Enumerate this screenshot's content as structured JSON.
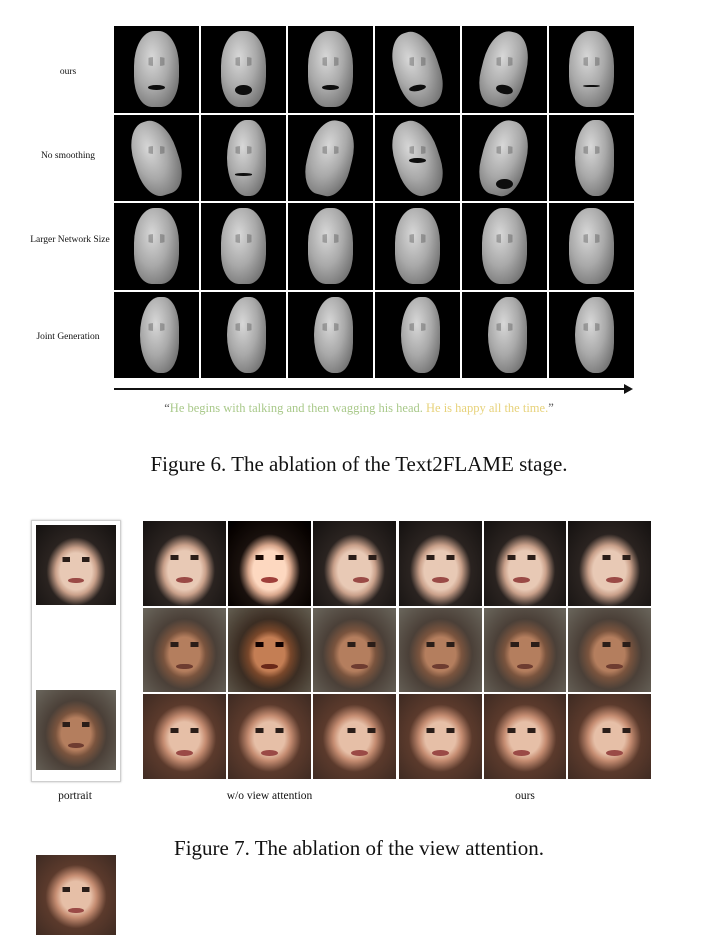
{
  "figure6": {
    "row_labels": [
      "ours",
      "No smoothing",
      "Larger Network Size",
      "Joint Generation"
    ],
    "quote_open": "“",
    "quote_part1": "He begins with talking and then wagging his head. ",
    "quote_part2": "He is happy all the time.",
    "quote_close": "”",
    "quote_colors": {
      "part1": "#a9c98a",
      "part2": "#e7d27a"
    },
    "caption": "Figure 6. The ablation of the Text2FLAME stage."
  },
  "figure7": {
    "column_labels": {
      "portrait": "portrait",
      "without": "w/o view attention",
      "ours": "ours"
    },
    "caption": "Figure 7. The ablation of the view attention."
  }
}
